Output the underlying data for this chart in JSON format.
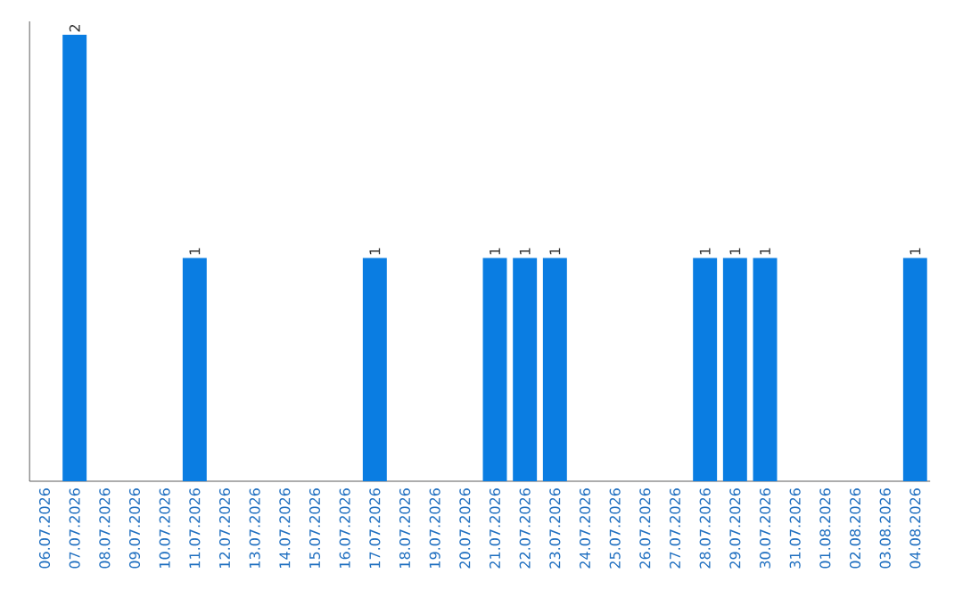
{
  "chart_data": {
    "type": "bar",
    "categories": [
      "06.07.2026",
      "07.07.2026",
      "08.07.2026",
      "09.07.2026",
      "10.07.2026",
      "11.07.2026",
      "12.07.2026",
      "13.07.2026",
      "14.07.2026",
      "15.07.2026",
      "16.07.2026",
      "17.07.2026",
      "18.07.2026",
      "19.07.2026",
      "20.07.2026",
      "21.07.2026",
      "22.07.2026",
      "23.07.2026",
      "24.07.2026",
      "25.07.2026",
      "26.07.2026",
      "27.07.2026",
      "28.07.2026",
      "29.07.2026",
      "30.07.2026",
      "31.07.2026",
      "01.08.2026",
      "02.08.2026",
      "03.08.2026",
      "04.08.2026"
    ],
    "values": [
      0,
      2,
      0,
      0,
      0,
      1,
      0,
      0,
      0,
      0,
      0,
      1,
      0,
      0,
      0,
      1,
      1,
      1,
      0,
      0,
      0,
      0,
      1,
      1,
      1,
      0,
      0,
      0,
      0,
      1
    ],
    "value_labels": [
      null,
      "2",
      null,
      null,
      null,
      "1",
      null,
      null,
      null,
      null,
      null,
      "1",
      null,
      null,
      null,
      "1",
      "1",
      "1",
      null,
      null,
      null,
      null,
      "1",
      "1",
      "1",
      null,
      null,
      null,
      null,
      "1"
    ],
    "color": "#0a7de2",
    "ylim": [
      0,
      2.06
    ],
    "tick_labels": "x",
    "grid": false,
    "legend": false
  }
}
